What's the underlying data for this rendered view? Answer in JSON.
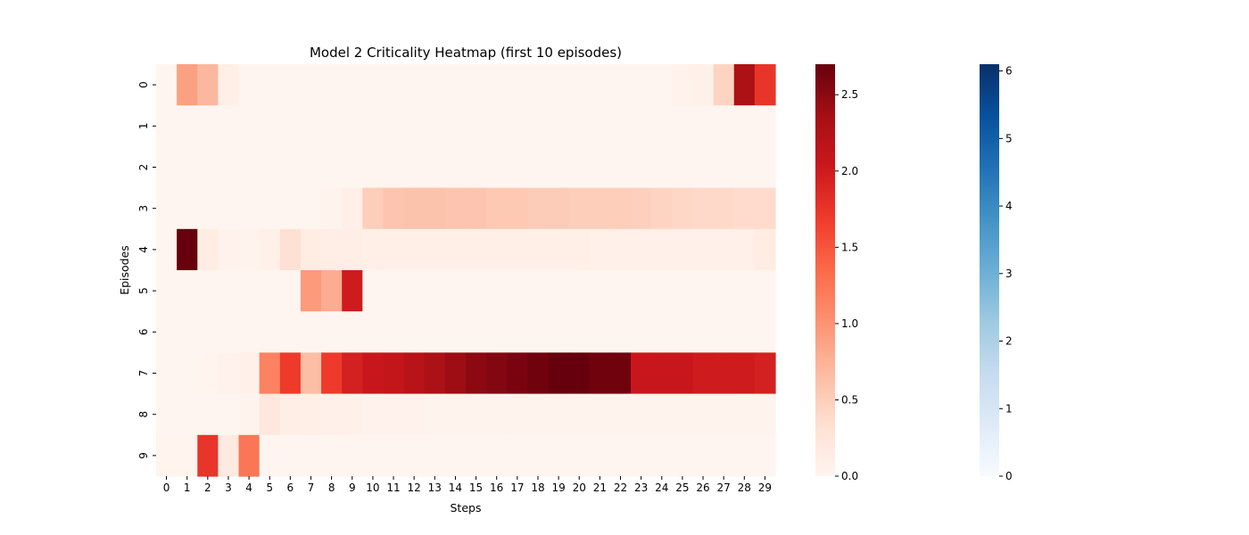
{
  "chart_data": {
    "type": "heatmap",
    "title": "Model 2 Criticality Heatmap (first 10 episodes)",
    "xlabel": "Steps",
    "ylabel": "Episodes",
    "x": [
      0,
      1,
      2,
      3,
      4,
      5,
      6,
      7,
      8,
      9,
      10,
      11,
      12,
      13,
      14,
      15,
      16,
      17,
      18,
      19,
      20,
      21,
      22,
      23,
      24,
      25,
      26,
      27,
      28,
      29
    ],
    "y": [
      0,
      1,
      2,
      3,
      4,
      5,
      6,
      7,
      8,
      9
    ],
    "values": [
      [
        0.0,
        0.9,
        0.7,
        0.1,
        0.0,
        0.0,
        0.0,
        0.0,
        0.0,
        0.0,
        0.0,
        0.0,
        0.0,
        0.0,
        0.0,
        0.0,
        0.0,
        0.0,
        0.0,
        0.0,
        0.0,
        0.0,
        0.0,
        0.0,
        0.0,
        0.05,
        0.07,
        0.45,
        2.3,
        1.75
      ],
      [
        0.0,
        0.0,
        0.0,
        0.0,
        0.0,
        0.0,
        0.0,
        0.0,
        0.0,
        0.0,
        0.0,
        0.0,
        0.0,
        0.0,
        0.0,
        0.0,
        0.0,
        0.0,
        0.0,
        0.0,
        0.0,
        0.0,
        0.0,
        0.0,
        0.0,
        0.0,
        0.0,
        0.0,
        0.0,
        0.0
      ],
      [
        0.0,
        0.0,
        0.0,
        0.0,
        0.0,
        0.0,
        0.0,
        0.0,
        0.0,
        0.0,
        0.0,
        0.0,
        0.0,
        0.0,
        0.0,
        0.0,
        0.0,
        0.0,
        0.0,
        0.0,
        0.0,
        0.0,
        0.0,
        0.0,
        0.0,
        0.0,
        0.0,
        0.0,
        0.0,
        0.0
      ],
      [
        0.0,
        0.0,
        0.0,
        0.0,
        0.0,
        0.0,
        0.0,
        0.0,
        0.03,
        0.1,
        0.5,
        0.58,
        0.6,
        0.6,
        0.58,
        0.58,
        0.55,
        0.55,
        0.52,
        0.52,
        0.5,
        0.5,
        0.5,
        0.48,
        0.45,
        0.42,
        0.4,
        0.4,
        0.38,
        0.38
      ],
      [
        0.0,
        2.7,
        0.15,
        0.05,
        0.03,
        0.08,
        0.32,
        0.15,
        0.12,
        0.12,
        0.1,
        0.1,
        0.1,
        0.1,
        0.1,
        0.1,
        0.1,
        0.1,
        0.1,
        0.1,
        0.1,
        0.08,
        0.08,
        0.08,
        0.08,
        0.08,
        0.08,
        0.08,
        0.08,
        0.15
      ],
      [
        0.0,
        0.0,
        0.0,
        0.0,
        0.0,
        0.0,
        0.0,
        0.95,
        0.8,
        2.0,
        0.0,
        0.0,
        0.0,
        0.0,
        0.0,
        0.0,
        0.0,
        0.0,
        0.0,
        0.0,
        0.0,
        0.0,
        0.0,
        0.0,
        0.0,
        0.0,
        0.0,
        0.0,
        0.0,
        0.0
      ],
      [
        0.0,
        0.0,
        0.0,
        0.0,
        0.0,
        0.0,
        0.0,
        0.0,
        0.0,
        0.0,
        0.0,
        0.0,
        0.0,
        0.0,
        0.0,
        0.0,
        0.0,
        0.0,
        0.0,
        0.0,
        0.0,
        0.0,
        0.0,
        0.0,
        0.0,
        0.0,
        0.0,
        0.0,
        0.0,
        0.0
      ],
      [
        0.0,
        0.0,
        0.02,
        0.05,
        0.07,
        1.15,
        1.7,
        0.65,
        1.7,
        1.95,
        2.05,
        2.1,
        2.2,
        2.3,
        2.4,
        2.5,
        2.55,
        2.6,
        2.65,
        2.7,
        2.7,
        2.65,
        2.65,
        2.05,
        2.05,
        2.05,
        2.0,
        2.0,
        2.0,
        1.95
      ],
      [
        0.0,
        0.0,
        0.0,
        0.0,
        0.03,
        0.22,
        0.12,
        0.1,
        0.08,
        0.07,
        0.05,
        0.05,
        0.05,
        0.03,
        0.03,
        0.03,
        0.03,
        0.03,
        0.03,
        0.03,
        0.03,
        0.03,
        0.03,
        0.03,
        0.03,
        0.03,
        0.03,
        0.03,
        0.03,
        0.03
      ],
      [
        0.02,
        0.02,
        1.75,
        0.18,
        1.25,
        0.0,
        0.0,
        0.0,
        0.0,
        0.0,
        0.0,
        0.0,
        0.0,
        0.0,
        0.0,
        0.0,
        0.0,
        0.0,
        0.0,
        0.0,
        0.0,
        0.0,
        0.0,
        0.0,
        0.0,
        0.0,
        0.0,
        0.0,
        0.0,
        0.0
      ]
    ],
    "colorbar_main": {
      "colormap": "Reds",
      "range": [
        0,
        2.7
      ],
      "ticks": [
        0.0,
        0.5,
        1.0,
        1.5,
        2.0,
        2.5
      ],
      "tick_labels": [
        "0.0",
        "0.5",
        "1.0",
        "1.5",
        "2.0",
        "2.5"
      ]
    },
    "colorbar_secondary": {
      "colormap": "Blues",
      "range": [
        0,
        6.1
      ],
      "ticks": [
        0,
        1,
        2,
        3,
        4,
        5,
        6
      ],
      "tick_labels": [
        "0",
        "1",
        "2",
        "3",
        "4",
        "5",
        "6"
      ]
    },
    "grid": false
  }
}
